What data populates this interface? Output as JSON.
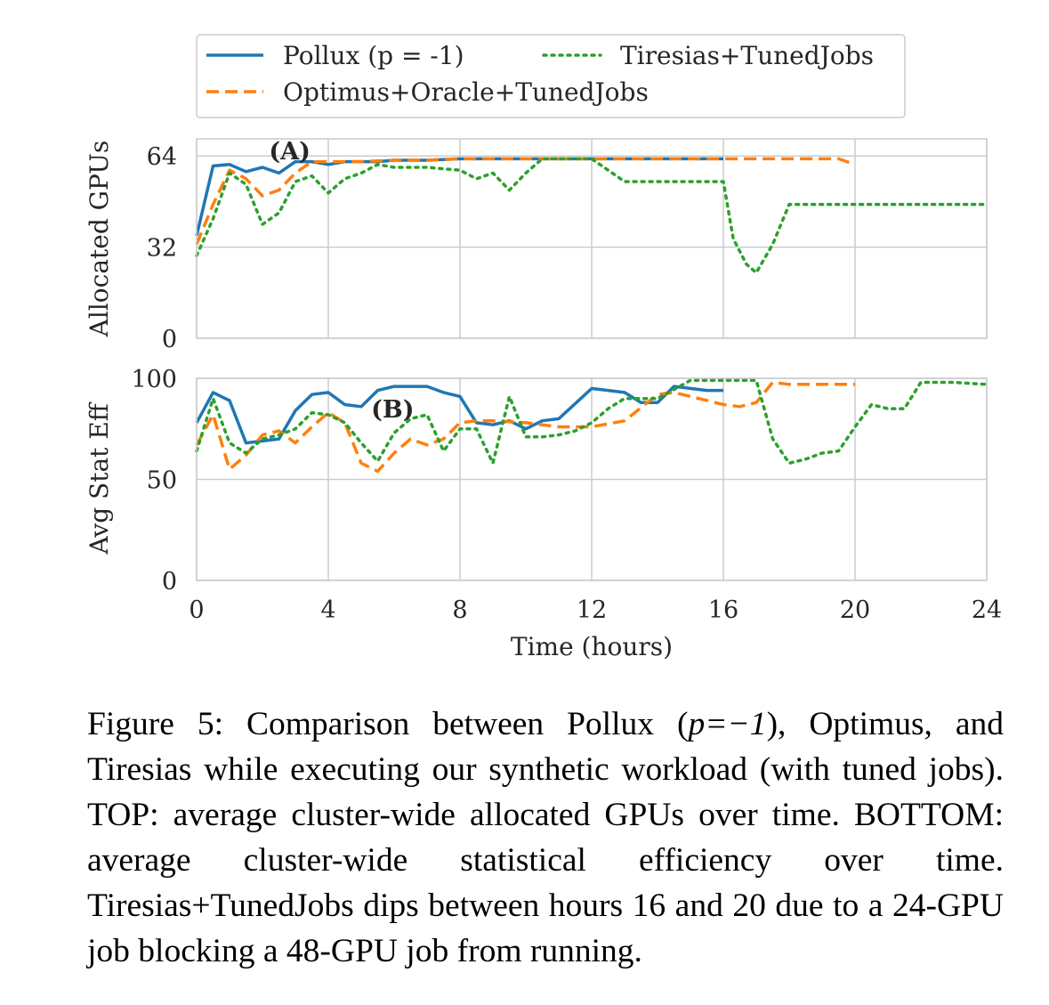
{
  "chart_data": [
    {
      "type": "line",
      "ylabel": "Allocated GPUs",
      "xlabel": "",
      "xlim": [
        0,
        24
      ],
      "ylim": [
        0,
        70
      ],
      "xticks": [
        "0",
        "4",
        "8",
        "12",
        "16",
        "20",
        "24"
      ],
      "yticks": [
        {
          "value": 0,
          "label": "0"
        },
        {
          "value": 32,
          "label": "32"
        },
        {
          "value": 64,
          "label": "64"
        }
      ],
      "grid": true,
      "annotation": {
        "text": "(A)",
        "x": 2.2,
        "y": 66
      },
      "series": [
        {
          "name": "Pollux (p = -1)",
          "color": "#1f77b4",
          "style": "solid",
          "x": [
            0,
            0.5,
            1,
            1.5,
            2,
            2.5,
            3,
            3.5,
            4,
            4.5,
            5,
            5.5,
            6,
            7,
            8,
            9,
            10,
            11,
            12,
            13,
            14,
            15,
            16
          ],
          "y": [
            36,
            60.5,
            61,
            58.5,
            60,
            58,
            62,
            62,
            61,
            62,
            62,
            62,
            62.5,
            62.5,
            63,
            63,
            63,
            63,
            63,
            63,
            63,
            63,
            63
          ]
        },
        {
          "name": "Optimus+Oracle+TunedJobs",
          "color": "#ff7f0e",
          "style": "dashed",
          "x": [
            0,
            0.5,
            1,
            1.5,
            2,
            2.5,
            3,
            3.5,
            4,
            5,
            6,
            7,
            8,
            9,
            10,
            11,
            12,
            13,
            14,
            15,
            16,
            17,
            18,
            19,
            19.5,
            20
          ],
          "y": [
            33,
            47,
            59,
            56,
            50,
            52,
            58,
            62,
            62,
            62,
            62.5,
            62.5,
            63,
            63,
            63,
            63,
            63,
            63,
            63,
            63,
            63,
            63,
            63,
            63,
            63,
            61
          ]
        },
        {
          "name": "Tiresias+TunedJobs",
          "color": "#2ca02c",
          "style": "dotted",
          "x": [
            0,
            0.5,
            1,
            1.5,
            2,
            2.5,
            3,
            3.5,
            4,
            4.5,
            5,
            5.5,
            6,
            7,
            8,
            8.5,
            9,
            9.5,
            10,
            10.5,
            11,
            12,
            12.5,
            13,
            14,
            15,
            16,
            16.3,
            16.7,
            17,
            17.5,
            18,
            19,
            20,
            21,
            22,
            23,
            24
          ],
          "y": [
            29,
            42,
            58,
            54,
            40,
            44,
            55,
            57,
            51,
            56,
            58,
            61,
            60,
            60,
            59,
            56,
            58,
            52,
            58,
            63,
            63,
            63,
            59,
            55,
            55,
            55,
            55,
            35,
            26,
            23,
            33,
            47,
            47,
            47,
            47,
            47,
            47,
            47
          ]
        }
      ]
    },
    {
      "type": "line",
      "ylabel": "Avg Stat Eff",
      "xlabel": "Time (hours)",
      "xlim": [
        0,
        24
      ],
      "ylim": [
        0,
        100
      ],
      "xticks": [
        "0",
        "4",
        "8",
        "12",
        "16",
        "20",
        "24"
      ],
      "yticks": [
        {
          "value": 0,
          "label": "0"
        },
        {
          "value": 50,
          "label": "50"
        },
        {
          "value": 100,
          "label": "100"
        }
      ],
      "grid": true,
      "annotation": {
        "text": "(B)",
        "x": 5.3,
        "y": 85
      },
      "series": [
        {
          "name": "Pollux (p = -1)",
          "color": "#1f77b4",
          "style": "solid",
          "x": [
            0,
            0.5,
            1,
            1.5,
            2,
            2.5,
            3,
            3.5,
            4,
            4.5,
            5,
            5.5,
            6,
            6.5,
            7,
            7.5,
            8,
            8.5,
            9,
            9.5,
            10,
            10.5,
            11,
            12,
            13,
            13.5,
            14,
            14.5,
            15,
            15.5,
            16
          ],
          "y": [
            78,
            93,
            89,
            68,
            69,
            70,
            84,
            92,
            93,
            87,
            86,
            94,
            96,
            96,
            96,
            93,
            91,
            78,
            77,
            79,
            75,
            79,
            80,
            95,
            93,
            88,
            88,
            96,
            95,
            94,
            94
          ]
        },
        {
          "name": "Optimus+Oracle+TunedJobs",
          "color": "#ff7f0e",
          "style": "dashed",
          "x": [
            0,
            0.5,
            1,
            1.5,
            2,
            2.5,
            3,
            3.5,
            4,
            4.5,
            5,
            5.5,
            6,
            6.5,
            7,
            7.5,
            8,
            8.5,
            9,
            10,
            11,
            12,
            13,
            14,
            14.5,
            15,
            16,
            16.5,
            17,
            17.5,
            18,
            19,
            20
          ],
          "y": [
            67,
            82,
            55,
            62,
            72,
            74,
            68,
            76,
            83,
            78,
            58,
            54,
            63,
            70,
            67,
            70,
            78,
            79,
            79,
            78,
            76,
            76,
            79,
            92,
            93,
            91,
            87,
            86,
            88,
            98,
            97,
            97,
            97
          ]
        },
        {
          "name": "Tiresias+TunedJobs",
          "color": "#2ca02c",
          "style": "dotted",
          "x": [
            0,
            0.5,
            1,
            1.5,
            2,
            2.5,
            3,
            3.5,
            4,
            4.5,
            5,
            5.5,
            6,
            6.5,
            7,
            7.5,
            8,
            8.5,
            9,
            9.5,
            10,
            10.5,
            11,
            11.5,
            12,
            12.5,
            13,
            14,
            15,
            16,
            16.5,
            17,
            17.5,
            18,
            18.5,
            19,
            19.5,
            20,
            20.5,
            21,
            21.5,
            22,
            22.5,
            23,
            24
          ],
          "y": [
            64,
            90,
            68,
            63,
            70,
            72,
            75,
            83,
            82,
            78,
            68,
            59,
            73,
            80,
            82,
            64,
            75,
            75,
            58,
            91,
            71,
            71,
            72,
            74,
            78,
            85,
            90,
            90,
            99,
            99,
            99,
            99,
            70,
            58,
            60,
            63,
            64,
            76,
            87,
            85,
            85,
            98,
            98,
            98,
            97
          ]
        }
      ]
    }
  ],
  "legend": {
    "placement": "top-center",
    "entries": [
      {
        "label": "Pollux (p = -1)",
        "color": "#1f77b4",
        "style": "solid"
      },
      {
        "label": "Tiresias+TunedJobs",
        "color": "#2ca02c",
        "style": "dotted"
      },
      {
        "label": "Optimus+Oracle+TunedJobs",
        "color": "#ff7f0e",
        "style": "dashed"
      }
    ]
  },
  "caption": {
    "label": "Figure 5:",
    "text_before_math": "Comparison between Pollux (",
    "math": "p=−1",
    "text_after_math": "), Optimus, and Tiresias while executing our synthetic workload (with tuned jobs). TOP: average cluster-wide allocated GPUs over time. BOTTOM: average cluster-wide statistical efficiency over time. Tiresias+TunedJobs dips between hours 16 and 20 due to a 24-GPU job blocking a 48-GPU job from running."
  }
}
